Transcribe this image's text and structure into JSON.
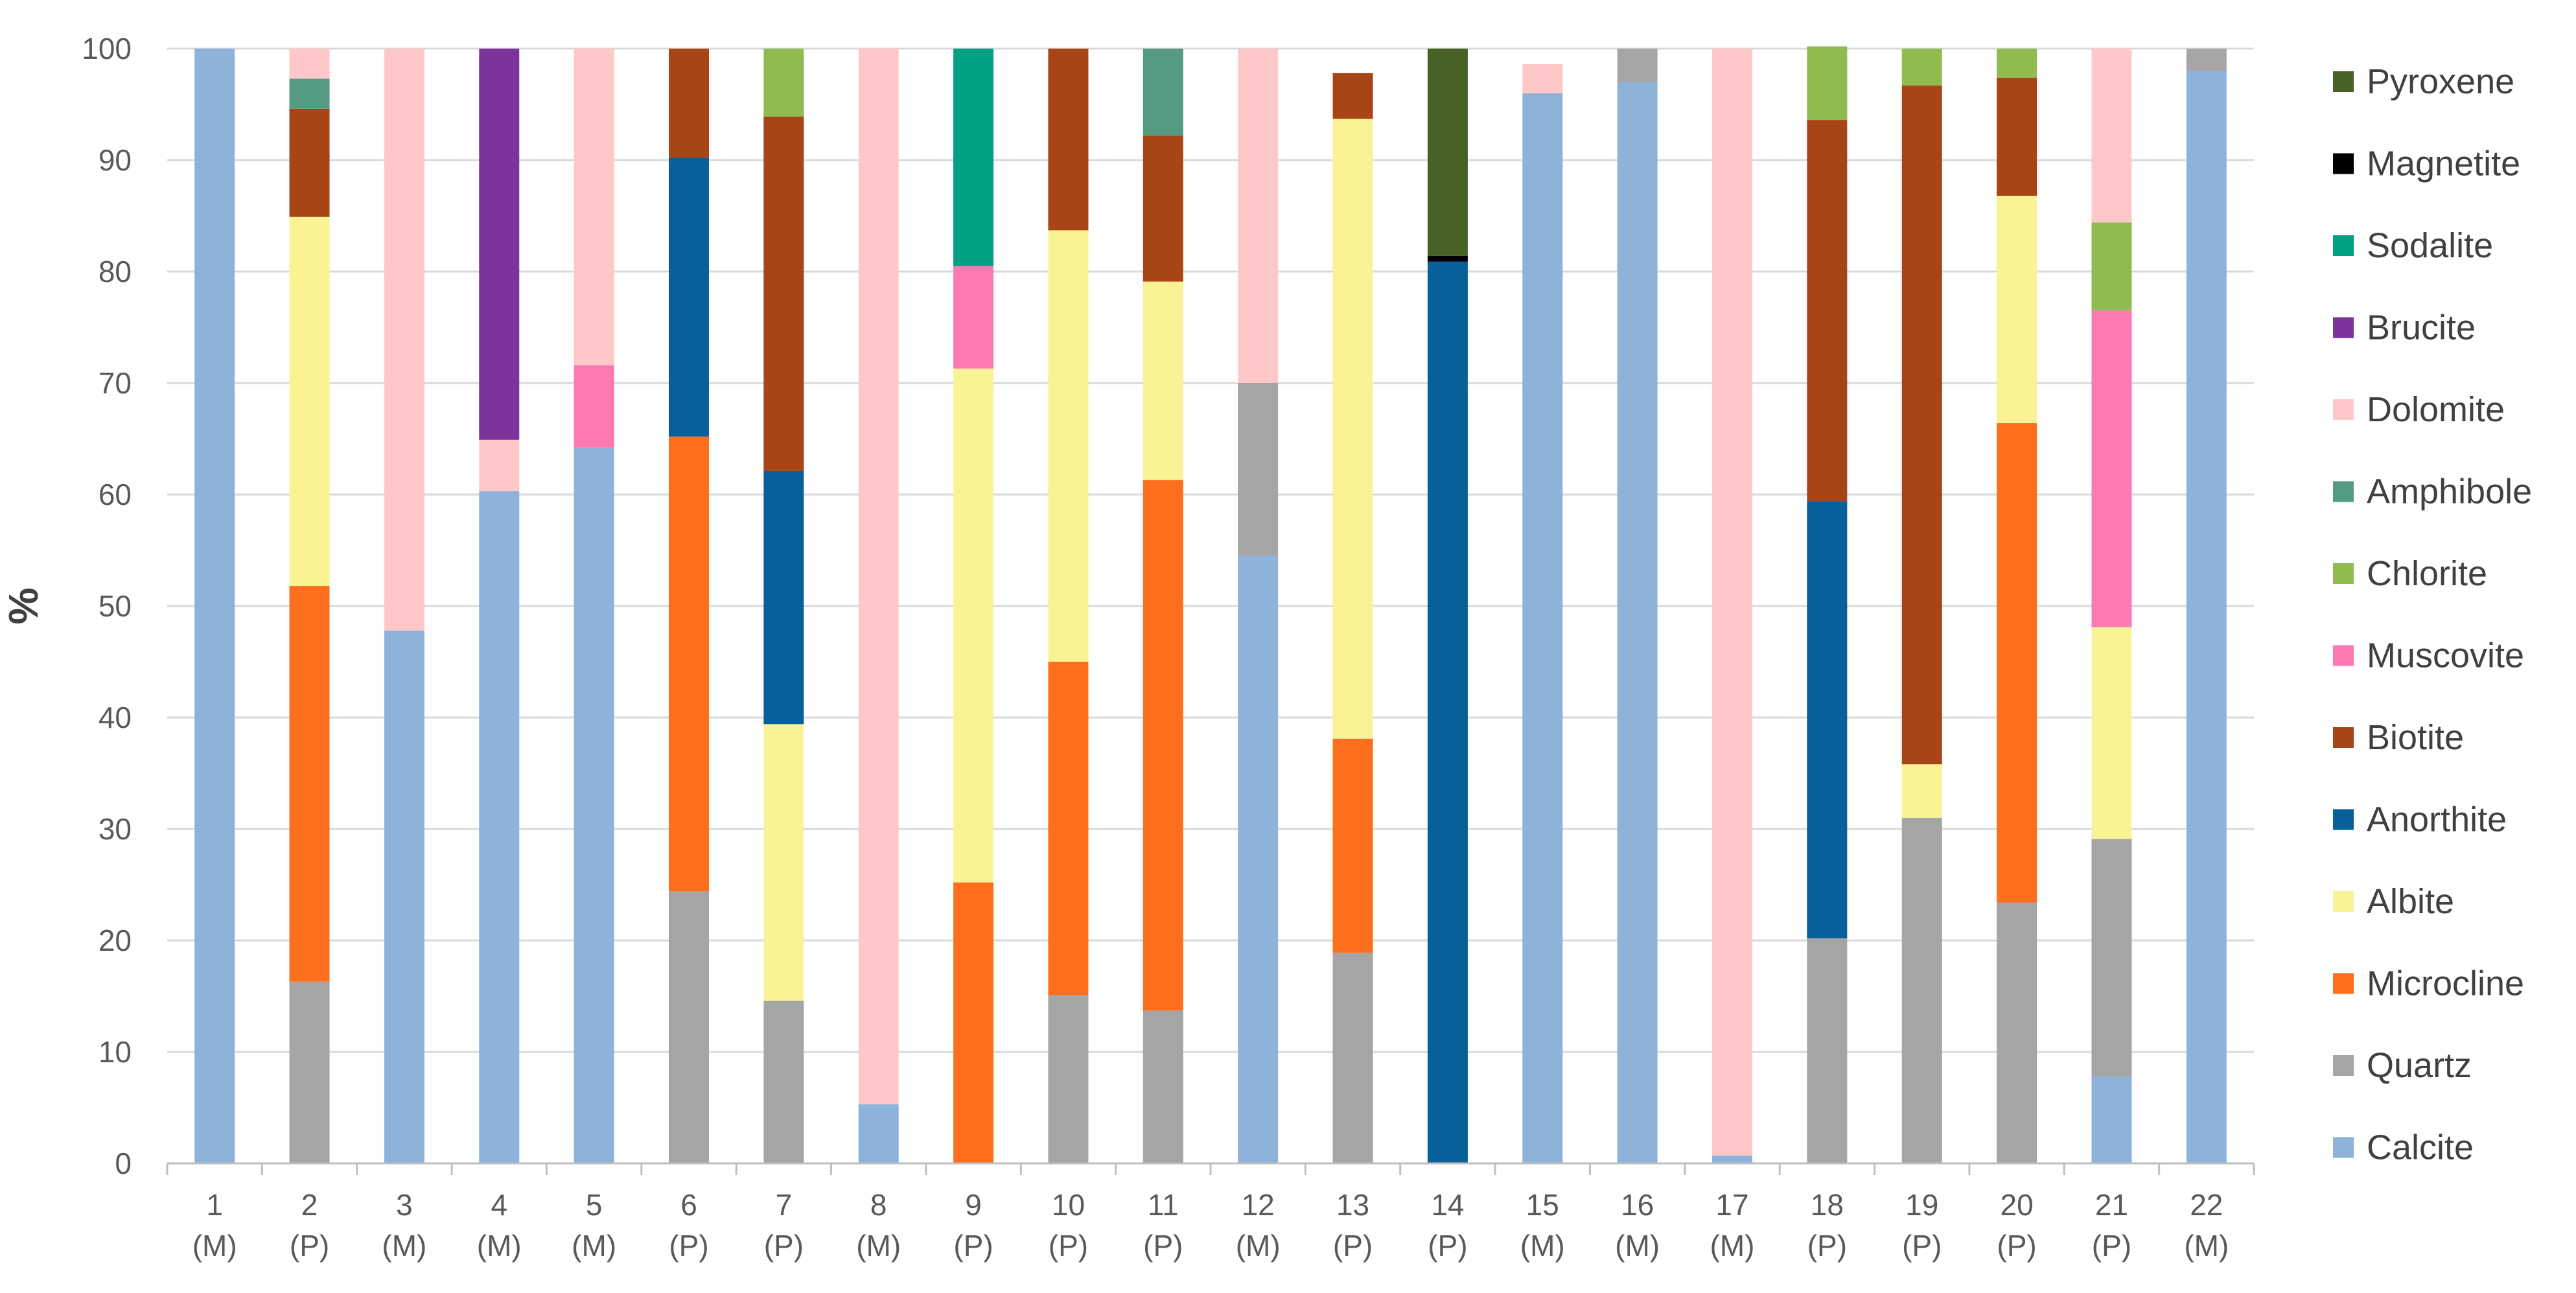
{
  "chart_data": {
    "type": "bar",
    "stacked": true,
    "title": "",
    "xlabel": "",
    "ylabel": "%",
    "ylim": [
      0,
      100
    ],
    "yticks": [
      0,
      10,
      20,
      30,
      40,
      50,
      60,
      70,
      80,
      90,
      100
    ],
    "grid": true,
    "legend_position": "right",
    "categories": [
      {
        "num": "1",
        "type": "(M)"
      },
      {
        "num": "2",
        "type": "(P)"
      },
      {
        "num": "3",
        "type": "(M)"
      },
      {
        "num": "4",
        "type": "(M)"
      },
      {
        "num": "5",
        "type": "(M)"
      },
      {
        "num": "6",
        "type": "(P)"
      },
      {
        "num": "7",
        "type": "(P)"
      },
      {
        "num": "8",
        "type": "(M)"
      },
      {
        "num": "9",
        "type": "(P)"
      },
      {
        "num": "10",
        "type": "(P)"
      },
      {
        "num": "11",
        "type": "(P)"
      },
      {
        "num": "12",
        "type": "(M)"
      },
      {
        "num": "13",
        "type": "(P)"
      },
      {
        "num": "14",
        "type": "(P)"
      },
      {
        "num": "15",
        "type": "(M)"
      },
      {
        "num": "16",
        "type": "(M)"
      },
      {
        "num": "17",
        "type": "(M)"
      },
      {
        "num": "18",
        "type": "(P)"
      },
      {
        "num": "19",
        "type": "(P)"
      },
      {
        "num": "20",
        "type": "(P)"
      },
      {
        "num": "21",
        "type": "(P)"
      },
      {
        "num": "22",
        "type": "(M)"
      }
    ],
    "series": [
      {
        "name": "Calcite",
        "color": "#8db3da",
        "values": [
          100,
          0,
          47.8,
          60.3,
          64.2,
          0,
          0,
          5.3,
          0,
          0,
          0,
          54.5,
          0,
          0,
          96,
          97,
          0.7,
          0,
          0,
          0,
          7.8,
          98
        ]
      },
      {
        "name": "Quartz",
        "color": "#a5a5a5",
        "values": [
          0,
          16.3,
          0,
          0,
          0,
          24.4,
          14.6,
          0,
          0,
          15.1,
          13.7,
          15.5,
          18.9,
          0,
          0,
          3,
          0,
          20.2,
          31,
          23.4,
          21.3,
          2
        ]
      },
      {
        "name": "Microcline",
        "color": "#fd6f1c",
        "values": [
          0,
          35.5,
          0,
          0,
          0,
          40.8,
          0,
          0,
          25.2,
          29.9,
          47.6,
          0,
          19.2,
          0,
          0,
          0,
          0,
          0,
          0,
          43,
          0,
          0
        ]
      },
      {
        "name": "Albite",
        "color": "#f9f396",
        "values": [
          0,
          33.1,
          0,
          0,
          0,
          0,
          24.8,
          0,
          46.1,
          38.7,
          17.8,
          0,
          55.6,
          0,
          0,
          0,
          0,
          0,
          4.8,
          20.4,
          19,
          0
        ]
      },
      {
        "name": "Anorthite",
        "color": "#07609a",
        "values": [
          0,
          0,
          0,
          0,
          0,
          25,
          22.7,
          0,
          0,
          0,
          0,
          0,
          0,
          80.9,
          0,
          0,
          0,
          39.2,
          0,
          0,
          0,
          0
        ]
      },
      {
        "name": "Biotite",
        "color": "#a74516",
        "values": [
          0,
          9.7,
          0,
          0,
          0,
          9.8,
          31.8,
          0,
          0,
          16.3,
          13.1,
          0,
          4.1,
          0,
          0,
          0,
          0,
          34.2,
          60.9,
          10.6,
          0,
          0
        ]
      },
      {
        "name": "Muscovite",
        "color": "#fc79b4",
        "values": [
          0,
          0,
          0,
          0,
          7.4,
          0,
          0,
          0,
          9.2,
          0,
          0,
          0,
          0,
          0,
          0,
          0,
          0,
          0,
          0,
          0,
          28.4,
          0
        ]
      },
      {
        "name": "Chlorite",
        "color": "#8fbb50",
        "values": [
          0,
          0,
          0,
          0,
          0,
          0,
          6.1,
          0,
          0,
          0,
          0,
          0,
          0,
          0,
          0,
          0,
          0,
          6.6,
          3.3,
          2.6,
          7.9,
          0
        ]
      },
      {
        "name": "Amphibole",
        "color": "#559b82",
        "values": [
          0,
          2.7,
          0,
          0,
          0,
          0,
          0,
          0,
          0,
          0,
          7.8,
          0,
          0,
          0,
          0,
          0,
          0,
          0,
          0,
          0,
          0,
          0
        ]
      },
      {
        "name": "Dolomite",
        "color": "#fec8c9",
        "values": [
          0,
          2.7,
          52.2,
          4.6,
          28.4,
          0,
          0,
          94.7,
          0,
          0,
          0,
          30,
          0,
          0,
          2.6,
          0,
          99.3,
          0,
          0,
          0,
          15.6,
          0
        ]
      },
      {
        "name": "Brucite",
        "color": "#7a349b",
        "values": [
          0,
          0,
          0,
          35.1,
          0,
          0,
          0,
          0,
          0,
          0,
          0,
          0,
          0,
          0,
          0,
          0,
          0,
          0,
          0,
          0,
          0,
          0
        ]
      },
      {
        "name": "Sodalite",
        "color": "#00a084",
        "values": [
          0,
          0,
          0,
          0,
          0,
          0,
          0,
          0,
          19.5,
          0,
          0,
          0,
          0,
          0,
          0,
          0,
          0,
          0,
          0,
          0,
          0,
          0
        ]
      },
      {
        "name": "Magnetite",
        "color": "#000000",
        "values": [
          0,
          0,
          0,
          0,
          0,
          0,
          0,
          0,
          0,
          0,
          0,
          0,
          0,
          0.5,
          0,
          0,
          0,
          0,
          0,
          0,
          0,
          0
        ]
      },
      {
        "name": "Pyroxene",
        "color": "#486124",
        "values": [
          0,
          0,
          0,
          0,
          0,
          0,
          0,
          0,
          0,
          0,
          0,
          0,
          0,
          18.6,
          0,
          0,
          0,
          0,
          0,
          0,
          0,
          0
        ]
      }
    ],
    "legend_order": [
      "Pyroxene",
      "Magnetite",
      "Sodalite",
      "Brucite",
      "Dolomite",
      "Amphibole",
      "Chlorite",
      "Muscovite",
      "Biotite",
      "Anorthite",
      "Albite",
      "Microcline",
      "Quartz",
      "Calcite"
    ]
  },
  "style": {
    "grid_color": "#d9d9d9",
    "axis_color": "#bfbfbf",
    "tick_text_color": "#595959",
    "legend_text_color": "#404040"
  }
}
